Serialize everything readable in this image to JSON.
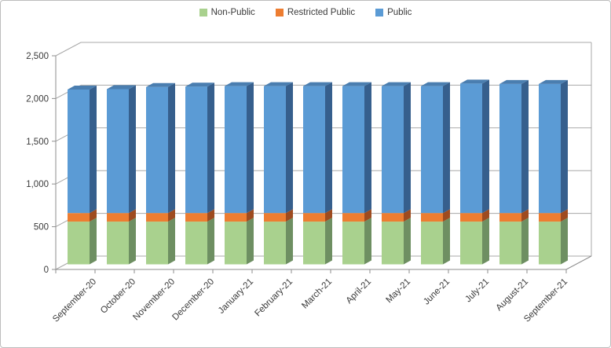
{
  "frame": {
    "background": "#FFFFFF",
    "border_color": "#BDBDBD"
  },
  "chart_data": {
    "type": "bar",
    "subtype": "stacked-column-3d",
    "title": "",
    "categories": [
      "September-20",
      "October-20",
      "November-20",
      "December-20",
      "January-21",
      "February-21",
      "March-21",
      "April-21",
      "May-21",
      "June-21",
      "July-21",
      "August-21",
      "September-21"
    ],
    "series": [
      {
        "name": "Non-Public",
        "color": "#A9D18E",
        "side_color": "#6E8F62",
        "top_color": "#8AB172",
        "values": [
          500,
          500,
          500,
          500,
          500,
          500,
          500,
          500,
          500,
          500,
          500,
          500,
          500
        ]
      },
      {
        "name": "Restricted Public",
        "color": "#ED7D31",
        "side_color": "#9E4B1F",
        "top_color": "#C56627",
        "values": [
          100,
          100,
          100,
          100,
          100,
          100,
          100,
          100,
          100,
          100,
          100,
          100,
          100
        ]
      },
      {
        "name": "Public",
        "color": "#5B9BD5",
        "side_color": "#365F8D",
        "top_color": "#4A7EB0",
        "values": [
          1445,
          1450,
          1475,
          1480,
          1485,
          1485,
          1485,
          1485,
          1485,
          1485,
          1515,
          1510,
          1510
        ]
      }
    ],
    "totals": [
      2045,
      2050,
      2075,
      2080,
      2085,
      2085,
      2085,
      2085,
      2085,
      2085,
      2115,
      2110,
      2110
    ],
    "y_axis": {
      "min": 0,
      "max": 2500,
      "step": 500,
      "tick_labels": [
        "0",
        "500",
        "1,000",
        "1,500",
        "2,000",
        "2,500"
      ]
    },
    "x_axis": {
      "label_rotation": -45
    },
    "legend_position": "top",
    "gridlines": true,
    "grid_color": "#A8A8A8",
    "axis_color": "#8E8E8E",
    "text_color": "#3A3A3A"
  }
}
